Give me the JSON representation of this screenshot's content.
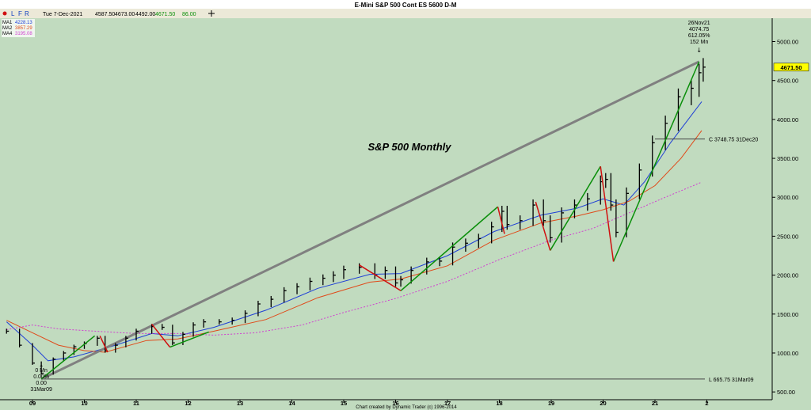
{
  "window": {
    "title": "E-Mini S&P 500 Cont ES 5600 D-M",
    "footer": "Chart created by Dynamic Trader  (c) 1996-2014"
  },
  "toolbar": {
    "buttons": [
      "L",
      "F",
      "R"
    ],
    "date": "Tue 7-Dec-2021",
    "open": "4587.50",
    "high": "4673.00",
    "low": "4492.00",
    "close": "4671.50",
    "change": "86.00"
  },
  "legend": [
    {
      "label": "MA1",
      "value": "4228.13",
      "color": "#1f3fd6"
    },
    {
      "label": "MA2",
      "value": "3857.29",
      "color": "#e04a1a"
    },
    {
      "label": "MA4",
      "value": "3195.08",
      "color": "#d040d0"
    }
  ],
  "colors": {
    "background": "#c1dbbf",
    "price_bars": "#000000",
    "up_swing": "#0a8f0a",
    "down_swing": "#d01010",
    "trendline": "#808080",
    "last_price_box": "#ffff00"
  },
  "chart_data": {
    "type": "line",
    "title": "S&P 500 Monthly",
    "x_ticks": [
      "09",
      "10",
      "11",
      "12",
      "13",
      "14",
      "15",
      "16",
      "17",
      "18",
      "19",
      "20",
      "21",
      "2"
    ],
    "y_ticks": [
      "500.00",
      "1000.00",
      "1500.00",
      "2000.00",
      "2500.00",
      "3000.00",
      "3500.00",
      "4000.00",
      "4500.00",
      "5000.00"
    ],
    "ylim": [
      400,
      5300
    ],
    "last_price": "4671.50",
    "price_series": {
      "name": "Monthly close",
      "x": [
        2008.5,
        2008.75,
        2009.0,
        2009.17,
        2009.4,
        2009.6,
        2009.8,
        2010.0,
        2010.25,
        2010.4,
        2010.6,
        2010.8,
        2011.0,
        2011.3,
        2011.5,
        2011.7,
        2011.9,
        2012.1,
        2012.3,
        2012.6,
        2012.85,
        2013.1,
        2013.35,
        2013.6,
        2013.85,
        2014.1,
        2014.35,
        2014.6,
        2014.8,
        2015.0,
        2015.3,
        2015.6,
        2015.8,
        2016.0,
        2016.1,
        2016.3,
        2016.6,
        2016.85,
        2017.1,
        2017.35,
        2017.6,
        2017.85,
        2018.05,
        2018.15,
        2018.4,
        2018.65,
        2018.85,
        2018.98,
        2019.2,
        2019.45,
        2019.7,
        2019.95,
        2020.05,
        2020.15,
        2020.25,
        2020.45,
        2020.7,
        2020.95,
        2021.2,
        2021.45,
        2021.7,
        2021.85,
        2021.93
      ],
      "y": [
        1280,
        1100,
        870,
        740,
        920,
        1000,
        1080,
        1120,
        1190,
        1030,
        1100,
        1190,
        1280,
        1340,
        1330,
        1130,
        1240,
        1360,
        1400,
        1400,
        1420,
        1510,
        1630,
        1690,
        1800,
        1850,
        1920,
        1960,
        2000,
        2070,
        2100,
        2000,
        2060,
        1900,
        1940,
        2060,
        2170,
        2180,
        2360,
        2410,
        2470,
        2620,
        2820,
        2650,
        2700,
        2900,
        2700,
        2480,
        2800,
        2900,
        2980,
        3200,
        3230,
        2900,
        2550,
        3050,
        3350,
        3700,
        3950,
        4290,
        4400,
        4600,
        4671.5
      ]
    },
    "ma_series": [
      {
        "name": "MA1",
        "x": [
          2008.5,
          2009.0,
          2009.3,
          2009.8,
          2010.5,
          2011.3,
          2011.8,
          2012.5,
          2013.5,
          2014.5,
          2015.5,
          2016.1,
          2017.0,
          2017.9,
          2018.8,
          2019.5,
          2020.0,
          2020.4,
          2020.8,
          2021.3,
          2021.9
        ],
        "y": [
          1400,
          1100,
          900,
          950,
          1080,
          1250,
          1220,
          1330,
          1550,
          1830,
          2010,
          2020,
          2250,
          2560,
          2770,
          2860,
          2980,
          2900,
          3200,
          3700,
          4228
        ]
      },
      {
        "name": "MA2",
        "x": [
          2008.5,
          2009.0,
          2009.5,
          2010.0,
          2010.4,
          2011.2,
          2011.8,
          2012.5,
          2013.5,
          2014.5,
          2015.5,
          2016.1,
          2017.0,
          2017.9,
          2018.8,
          2019.5,
          2020.0,
          2020.5,
          2021.0,
          2021.5,
          2021.9
        ],
        "y": [
          1420,
          1260,
          1100,
          1030,
          1010,
          1160,
          1180,
          1280,
          1430,
          1710,
          1910,
          1950,
          2120,
          2450,
          2670,
          2760,
          2840,
          2950,
          3150,
          3500,
          3857
        ]
      },
      {
        "name": "MA4",
        "x": [
          2008.5,
          2009.0,
          2009.5,
          2010.2,
          2011.0,
          2011.8,
          2012.5,
          2013.3,
          2014.2,
          2015.0,
          2016.0,
          2017.0,
          2018.0,
          2019.0,
          2019.8,
          2020.5,
          2021.2,
          2021.9
        ],
        "y": [
          1300,
          1360,
          1310,
          1280,
          1250,
          1250,
          1230,
          1260,
          1360,
          1520,
          1700,
          1920,
          2200,
          2450,
          2600,
          2800,
          3000,
          3195
        ]
      }
    ],
    "swings_up": [
      {
        "x": [
          2009.17,
          2010.2
        ],
        "y": [
          665.75,
          1220
        ]
      },
      {
        "x": [
          2011.65,
          2012.4
        ],
        "y": [
          1075,
          1270
        ]
      },
      {
        "x": [
          2016.1,
          2017.97
        ],
        "y": [
          1800,
          2878
        ]
      },
      {
        "x": [
          2018.98,
          2019.95
        ],
        "y": [
          2317,
          3397
        ]
      },
      {
        "x": [
          2020.2,
          2021.85
        ],
        "y": [
          2174,
          4742
        ]
      }
    ],
    "swings_down": [
      {
        "x": [
          2010.3,
          2010.45
        ],
        "y": [
          1220,
          1010
        ]
      },
      {
        "x": [
          2011.3,
          2011.65
        ],
        "y": [
          1370,
          1075
        ]
      },
      {
        "x": [
          2015.3,
          2016.1
        ],
        "y": [
          2130,
          1800
        ]
      },
      {
        "x": [
          2017.97,
          2018.1
        ],
        "y": [
          2878,
          2530
        ]
      },
      {
        "x": [
          2018.7,
          2018.98
        ],
        "y": [
          2940,
          2317
        ]
      },
      {
        "x": [
          2019.95,
          2020.2
        ],
        "y": [
          3397,
          2174
        ]
      }
    ],
    "trendline": {
      "x": [
        2009.17,
        2021.85
      ],
      "y": [
        665.75,
        4742
      ]
    },
    "horizontal_levels": [
      {
        "label": "C 3748.75 31Dec20",
        "value": 3748.75
      },
      {
        "label": "L 665.75 31Mar09",
        "value": 665.75
      }
    ],
    "annotations": [
      {
        "lines": [
          "26Nov21",
          "4074.75",
          "612.05%",
          "152 Mn"
        ],
        "x": 2021.85,
        "y": 4742
      },
      {
        "lines": [
          "0 Mn",
          "0.00%",
          "0.00",
          "31Mar09"
        ],
        "x": 2009.17,
        "y": 665.75
      }
    ]
  }
}
